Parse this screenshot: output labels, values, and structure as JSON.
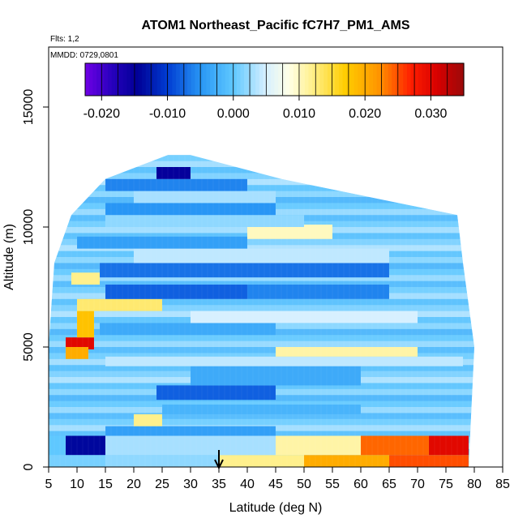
{
  "chart_data": {
    "type": "heatmap",
    "title": "ATOM1 Northeast_Pacific fC7H7_PM1_AMS",
    "flights_note": "Flts: 1,2",
    "dates_note": "MMDD: 0729,0801",
    "xlabel": "Latitude (deg N)",
    "ylabel": "Altitude (m)",
    "xlim": [
      5,
      85
    ],
    "ylim": [
      0,
      17500
    ],
    "xticks": [
      "5",
      "10",
      "15",
      "20",
      "25",
      "30",
      "35",
      "40",
      "45",
      "50",
      "55",
      "60",
      "65",
      "70",
      "75",
      "80",
      "85"
    ],
    "yticks": [
      "0",
      "5000",
      "10000",
      "15000"
    ],
    "colorbar": {
      "range": [
        -0.0225,
        0.035
      ],
      "ticks": [
        "-0.020",
        "-0.010",
        "0.000",
        "0.010",
        "0.020",
        "0.030"
      ],
      "tick_values": [
        -0.02,
        -0.01,
        0.0,
        0.01,
        0.02,
        0.03
      ]
    },
    "arrow_marker_latitude": 35,
    "background_value": 0.001,
    "envelope": [
      {
        "altitude": 0,
        "lat_min": 5,
        "lat_max": 79
      },
      {
        "altitude": 5000,
        "lat_min": 5,
        "lat_max": 80
      },
      {
        "altitude": 8500,
        "lat_min": 6,
        "lat_max": 78
      },
      {
        "altitude": 10500,
        "lat_min": 9,
        "lat_max": 77
      },
      {
        "altitude": 12000,
        "lat_min": 15,
        "lat_max": 46
      },
      {
        "altitude": 13000,
        "lat_min": 26,
        "lat_max": 30
      }
    ],
    "layers": [
      {
        "alt": [
          0,
          500
        ],
        "lat": [
          5,
          15
        ],
        "value": 0.001
      },
      {
        "alt": [
          0,
          500
        ],
        "lat": [
          15,
          35
        ],
        "value": 0.002
      },
      {
        "alt": [
          0,
          500
        ],
        "lat": [
          35,
          50
        ],
        "value": 0.012
      },
      {
        "alt": [
          0,
          500
        ],
        "lat": [
          50,
          65
        ],
        "value": 0.02
      },
      {
        "alt": [
          0,
          500
        ],
        "lat": [
          65,
          79
        ],
        "value": 0.025
      },
      {
        "alt": [
          500,
          1300
        ],
        "lat": [
          5,
          8
        ],
        "value": 0.0
      },
      {
        "alt": [
          500,
          1300
        ],
        "lat": [
          8,
          15
        ],
        "value": -0.014
      },
      {
        "alt": [
          500,
          1300
        ],
        "lat": [
          15,
          45
        ],
        "value": 0.003
      },
      {
        "alt": [
          500,
          1300
        ],
        "lat": [
          45,
          60
        ],
        "value": 0.011
      },
      {
        "alt": [
          500,
          1300
        ],
        "lat": [
          60,
          72
        ],
        "value": 0.024
      },
      {
        "alt": [
          500,
          1300
        ],
        "lat": [
          72,
          79
        ],
        "value": 0.03
      },
      {
        "alt": [
          1300,
          1700
        ],
        "lat": [
          15,
          45
        ],
        "value": -0.004
      },
      {
        "alt": [
          1700,
          2200
        ],
        "lat": [
          20,
          25
        ],
        "value": 0.012
      },
      {
        "alt": [
          2200,
          2600
        ],
        "lat": [
          25,
          60
        ],
        "value": -0.002
      },
      {
        "alt": [
          2800,
          3400
        ],
        "lat": [
          24,
          45
        ],
        "value": -0.008
      },
      {
        "alt": [
          3400,
          4200
        ],
        "lat": [
          30,
          60
        ],
        "value": -0.003
      },
      {
        "alt": [
          4200,
          4600
        ],
        "lat": [
          15,
          78
        ],
        "value": 0.004
      },
      {
        "alt": [
          4600,
          5000
        ],
        "lat": [
          45,
          70
        ],
        "value": 0.011
      },
      {
        "alt": [
          4900,
          5400
        ],
        "lat": [
          8,
          13
        ],
        "value": 0.03
      },
      {
        "alt": [
          4500,
          5000
        ],
        "lat": [
          8,
          12
        ],
        "value": 0.02
      },
      {
        "alt": [
          5400,
          6500
        ],
        "lat": [
          10,
          13
        ],
        "value": 0.018
      },
      {
        "alt": [
          5500,
          6000
        ],
        "lat": [
          14,
          45
        ],
        "value": -0.003
      },
      {
        "alt": [
          6500,
          7000
        ],
        "lat": [
          10,
          25
        ],
        "value": 0.013
      },
      {
        "alt": [
          6000,
          6500
        ],
        "lat": [
          30,
          70
        ],
        "value": 0.005
      },
      {
        "alt": [
          7000,
          7600
        ],
        "lat": [
          15,
          40
        ],
        "value": -0.008
      },
      {
        "alt": [
          7000,
          7600
        ],
        "lat": [
          40,
          65
        ],
        "value": -0.006
      },
      {
        "alt": [
          7600,
          8100
        ],
        "lat": [
          9,
          14
        ],
        "value": 0.012
      },
      {
        "alt": [
          7900,
          8500
        ],
        "lat": [
          14,
          65
        ],
        "value": -0.007
      },
      {
        "alt": [
          8500,
          9100
        ],
        "lat": [
          20,
          65
        ],
        "value": 0.004
      },
      {
        "alt": [
          9100,
          9600
        ],
        "lat": [
          10,
          40
        ],
        "value": -0.004
      },
      {
        "alt": [
          9500,
          10100
        ],
        "lat": [
          40,
          55
        ],
        "value": 0.01
      },
      {
        "alt": [
          10000,
          10500
        ],
        "lat": [
          15,
          50
        ],
        "value": 0.002
      },
      {
        "alt": [
          10500,
          11000
        ],
        "lat": [
          15,
          45
        ],
        "value": -0.005
      },
      {
        "alt": [
          11000,
          11500
        ],
        "lat": [
          20,
          45
        ],
        "value": 0.003
      },
      {
        "alt": [
          11500,
          12000
        ],
        "lat": [
          15,
          40
        ],
        "value": -0.006
      },
      {
        "alt": [
          12000,
          12500
        ],
        "lat": [
          24,
          30
        ],
        "value": -0.015
      }
    ]
  }
}
